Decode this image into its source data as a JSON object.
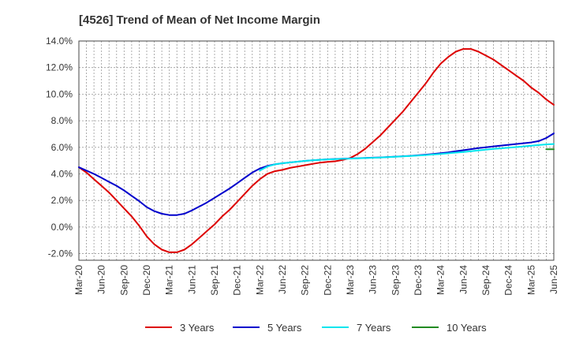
{
  "chart_data": {
    "type": "line",
    "title": "[4526]  Trend of Mean of Net Income Margin",
    "xlabel": "",
    "ylabel": "",
    "ylim": [
      -2.5,
      14.0
    ],
    "yticks": [
      -2.0,
      0.0,
      2.0,
      4.0,
      6.0,
      8.0,
      10.0,
      12.0,
      14.0
    ],
    "ytick_labels": [
      "-2.0%",
      "0.0%",
      "2.0%",
      "4.0%",
      "6.0%",
      "8.0%",
      "10.0%",
      "12.0%",
      "14.0%"
    ],
    "xtick_labels": [
      "Mar-20",
      "Jun-20",
      "Sep-20",
      "Dec-20",
      "Mar-21",
      "Jun-21",
      "Sep-21",
      "Dec-21",
      "Mar-22",
      "Jun-22",
      "Sep-22",
      "Dec-22",
      "Mar-23",
      "Jun-23",
      "Sep-23",
      "Dec-23",
      "Mar-24",
      "Jun-24",
      "Sep-24",
      "Dec-24",
      "Mar-25",
      "Jun-25"
    ],
    "grid": true,
    "legend_position": "bottom",
    "series": [
      {
        "name": "3 Years",
        "color": "#dd0000",
        "start_index": 0,
        "values": [
          4.5,
          4.1,
          3.6,
          3.1,
          2.6,
          2.0,
          1.4,
          0.8,
          0.1,
          -0.7,
          -1.3,
          -1.7,
          -1.9,
          -1.9,
          -1.7,
          -1.3,
          -0.8,
          -0.3,
          0.2,
          0.8,
          1.3,
          1.9,
          2.5,
          3.1,
          3.6,
          4.0,
          4.2,
          4.3,
          4.45,
          4.55,
          4.65,
          4.75,
          4.85,
          4.9,
          4.95,
          5.05,
          5.2,
          5.5,
          5.9,
          6.4,
          6.9,
          7.5,
          8.1,
          8.7,
          9.4,
          10.1,
          10.8,
          11.6,
          12.3,
          12.8,
          13.2,
          13.4,
          13.4,
          13.2,
          12.9,
          12.6,
          12.2,
          11.8,
          11.4,
          11.0,
          10.5,
          10.1,
          9.6,
          9.2
        ]
      },
      {
        "name": "5 Years",
        "color": "#0000cc",
        "start_index": 0,
        "values": [
          4.5,
          4.25,
          4.0,
          3.7,
          3.4,
          3.1,
          2.75,
          2.35,
          1.95,
          1.5,
          1.2,
          1.0,
          0.9,
          0.9,
          1.0,
          1.25,
          1.55,
          1.85,
          2.2,
          2.55,
          2.9,
          3.3,
          3.7,
          4.1,
          4.4,
          4.6,
          4.72,
          4.8,
          4.86,
          4.92,
          4.98,
          5.02,
          5.06,
          5.1,
          5.12,
          5.14,
          5.16,
          5.18,
          5.2,
          5.22,
          5.24,
          5.27,
          5.3,
          5.33,
          5.36,
          5.4,
          5.45,
          5.5,
          5.56,
          5.62,
          5.7,
          5.78,
          5.86,
          5.94,
          6.0,
          6.07,
          6.13,
          6.19,
          6.25,
          6.31,
          6.37,
          6.47,
          6.7,
          7.05
        ]
      },
      {
        "name": "7 Years",
        "color": "#00e5ee",
        "start_index": 24,
        "values": [
          4.25,
          4.55,
          4.72,
          4.8,
          4.86,
          4.92,
          4.98,
          5.02,
          5.06,
          5.09,
          5.11,
          5.13,
          5.15,
          5.17,
          5.19,
          5.21,
          5.23,
          5.26,
          5.29,
          5.32,
          5.35,
          5.38,
          5.42,
          5.46,
          5.5,
          5.55,
          5.6,
          5.65,
          5.71,
          5.77,
          5.83,
          5.88,
          5.92,
          5.97,
          6.02,
          6.07,
          6.12,
          6.17,
          6.22,
          6.25
        ]
      },
      {
        "name": "10 Years",
        "color": "#228b22",
        "start_index": 62,
        "values": [
          5.85,
          5.85
        ]
      }
    ]
  }
}
